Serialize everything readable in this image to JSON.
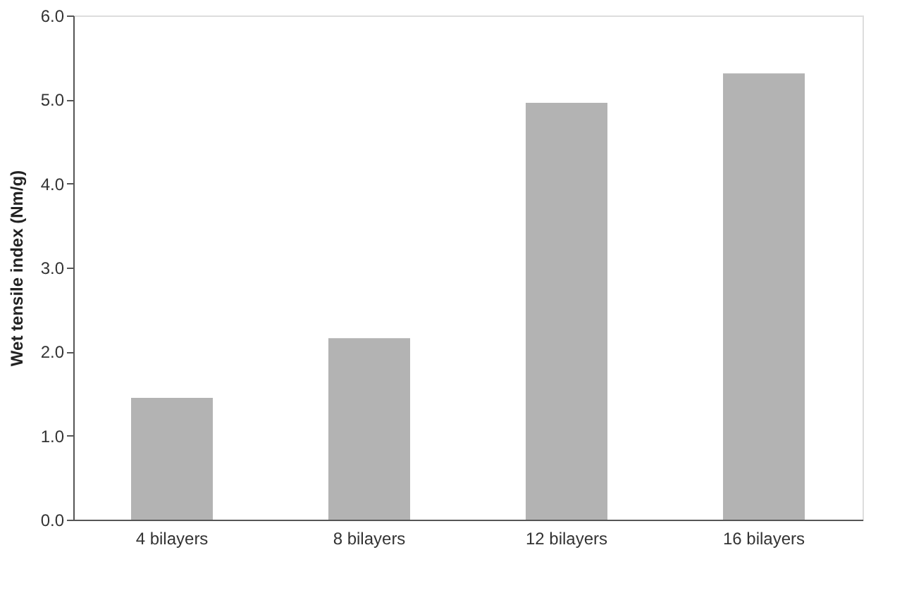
{
  "chart_data": {
    "type": "bar",
    "ylabel": "Wet tensile index (Nm/g)",
    "categories": [
      "4 bilayers",
      "8 bilayers",
      "12 bilayers",
      "16 bilayers"
    ],
    "values": [
      1.45,
      2.16,
      4.96,
      5.31
    ],
    "color": "#b3b3b3",
    "ylim": [
      0,
      6
    ],
    "yticks": [
      {
        "value": 0,
        "label": "0.0"
      },
      {
        "value": 1,
        "label": "1.0"
      },
      {
        "value": 2,
        "label": "2.0"
      },
      {
        "value": 3,
        "label": "3.0"
      },
      {
        "value": 4,
        "label": "4.0"
      },
      {
        "value": 5,
        "label": "5.0"
      },
      {
        "value": 6,
        "label": "6.0"
      }
    ],
    "grid": false
  }
}
